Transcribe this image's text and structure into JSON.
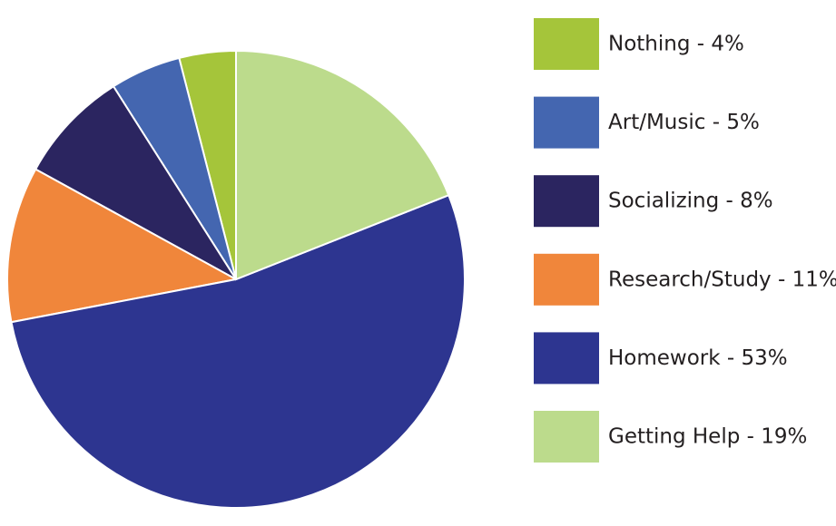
{
  "chart_data": {
    "type": "pie",
    "categories": [
      "Nothing - 4%",
      "Art/Music - 5%",
      "Socializing - 8%",
      "Research/Study - 11%",
      "Homework - 53%",
      "Getting Help - 19%"
    ],
    "values": [
      4,
      5,
      8,
      11,
      53,
      19
    ],
    "colors": [
      "#a5c53a",
      "#4466b0",
      "#2b2560",
      "#f0863b",
      "#2d3590",
      "#bcdb8c"
    ]
  }
}
